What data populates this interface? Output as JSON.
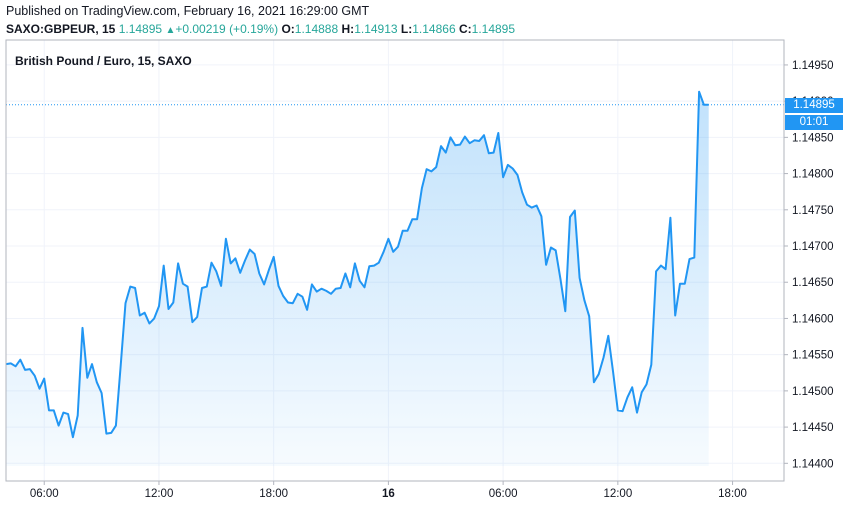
{
  "header": {
    "published": "Published on TradingView.com, February 16, 2021 16:29:00 GMT",
    "symbol": "SAXO:GBPEUR, 15",
    "last": "1.14895",
    "change": "+0.00219 (+0.19%)",
    "open_label": "O:",
    "open": "1.14888",
    "high_label": "H:",
    "high": "1.14913",
    "low_label": "L:",
    "low": "1.14866",
    "close_label": "C:",
    "close": "1.14895",
    "up_arrow": "▲"
  },
  "price_tag": {
    "last": "1.14895",
    "countdown": "01:01"
  },
  "colors": {
    "line": "#2196f3",
    "fill": "#2196f3",
    "tag": "#2196f3",
    "up": "#26a69a",
    "grid": "#f0f3fa"
  },
  "chart_data": {
    "type": "area",
    "title": "British Pound / Euro, 15, SAXO",
    "ylim": [
      1.14388,
      1.14972
    ],
    "y_ticks": [
      1.144,
      1.1445,
      1.145,
      1.1455,
      1.146,
      1.1465,
      1.147,
      1.1475,
      1.148,
      1.1485,
      1.149,
      1.1495
    ],
    "y_tick_labels": [
      "1.14400",
      "1.14450",
      "1.14500",
      "1.14550",
      "1.14600",
      "1.14650",
      "1.14700",
      "1.14750",
      "1.14800",
      "1.14850",
      "1.14900",
      "1.14950"
    ],
    "x_ticks": [
      {
        "label": "06:00",
        "bold": false,
        "index": 8
      },
      {
        "label": "12:00",
        "bold": false,
        "index": 32
      },
      {
        "label": "18:00",
        "bold": false,
        "index": 56
      },
      {
        "label": "16",
        "bold": true,
        "index": 80
      },
      {
        "label": "06:00",
        "bold": false,
        "index": 104
      },
      {
        "label": "12:00",
        "bold": false,
        "index": 128
      },
      {
        "label": "18:00",
        "bold": false,
        "index": 152
      }
    ],
    "x_range": [
      0,
      156
    ],
    "last_value": 1.14895,
    "values": [
      1.14537,
      1.14538,
      1.14534,
      1.14543,
      1.14529,
      1.1453,
      1.14521,
      1.14503,
      1.14517,
      1.14473,
      1.14473,
      1.14452,
      1.1447,
      1.14468,
      1.14436,
      1.14466,
      1.14587,
      1.14518,
      1.14537,
      1.14512,
      1.14497,
      1.14441,
      1.14442,
      1.14452,
      1.14535,
      1.14621,
      1.14644,
      1.14642,
      1.14604,
      1.14608,
      1.14593,
      1.146,
      1.14617,
      1.14673,
      1.14613,
      1.14622,
      1.14676,
      1.14648,
      1.14644,
      1.14595,
      1.14602,
      1.14642,
      1.14644,
      1.14677,
      1.14665,
      1.14645,
      1.1471,
      1.14676,
      1.14683,
      1.14663,
      1.1468,
      1.14695,
      1.14689,
      1.14662,
      1.14647,
      1.14667,
      1.14685,
      1.14645,
      1.14631,
      1.14622,
      1.14621,
      1.14634,
      1.1463,
      1.14612,
      1.14647,
      1.14637,
      1.14641,
      1.14638,
      1.14634,
      1.14641,
      1.14642,
      1.14662,
      1.14643,
      1.14676,
      1.14652,
      1.14643,
      1.14672,
      1.14673,
      1.14677,
      1.14692,
      1.1471,
      1.14692,
      1.14699,
      1.14721,
      1.14721,
      1.14737,
      1.14737,
      1.1478,
      1.14806,
      1.14803,
      1.14809,
      1.14838,
      1.14829,
      1.1485,
      1.14839,
      1.1484,
      1.14851,
      1.14842,
      1.14846,
      1.14845,
      1.14853,
      1.14828,
      1.14829,
      1.14856,
      1.14795,
      1.14812,
      1.14807,
      1.14798,
      1.14774,
      1.14757,
      1.14753,
      1.14756,
      1.14741,
      1.14674,
      1.14698,
      1.14694,
      1.14654,
      1.1461,
      1.1474,
      1.14749,
      1.14656,
      1.14625,
      1.14603,
      1.14512,
      1.14523,
      1.14546,
      1.14576,
      1.14526,
      1.14473,
      1.14472,
      1.14491,
      1.14505,
      1.1447,
      1.14498,
      1.14509,
      1.14536,
      1.14665,
      1.14673,
      1.14668,
      1.14739,
      1.14604,
      1.14648,
      1.14648,
      1.14682,
      1.14684,
      1.14913,
      1.14895,
      1.14895
    ]
  }
}
